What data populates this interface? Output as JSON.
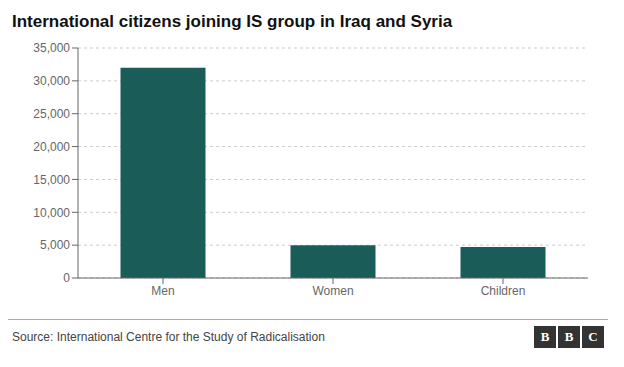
{
  "chart_data": {
    "type": "bar",
    "title": "International citizens joining IS group in Iraq and Syria",
    "categories": [
      "Men",
      "Women",
      "Children"
    ],
    "values": [
      32000,
      5000,
      4700
    ],
    "color": "#1a5c58",
    "ylim": [
      0,
      35000
    ],
    "yticks": [
      0,
      {
        "value": 5000,
        "label": "5,000"
      },
      {
        "value": 10000,
        "label": "10,000"
      },
      {
        "value": 15000,
        "label": "15,000"
      },
      {
        "value": 20000,
        "label": "20,000"
      },
      {
        "value": 25000,
        "label": "25,000"
      },
      {
        "value": 30000,
        "label": "30,000"
      },
      {
        "value": 35000,
        "label": "35,000"
      }
    ],
    "grid": true,
    "annotations": [
      "Source: International Centre for the Study of Radicalisation",
      "BBC"
    ]
  }
}
